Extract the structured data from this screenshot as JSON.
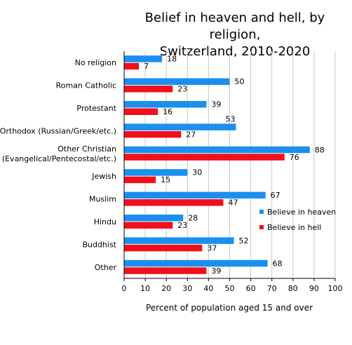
{
  "chart_data": {
    "type": "bar",
    "orientation": "horizontal",
    "title": [
      "Belief in heaven and hell, by religion,",
      "Switzerland, 2010-2020"
    ],
    "xlabel": "Percent of population aged 15 and over",
    "xlim": [
      0,
      100
    ],
    "xticks": [
      "0",
      "10",
      "20",
      "30",
      "40",
      "50",
      "60",
      "70",
      "80",
      "90",
      "100"
    ],
    "grid": "vertical",
    "legend_position": "right",
    "categories": [
      [
        "No religion"
      ],
      [
        "Roman Catholic"
      ],
      [
        "Protestant"
      ],
      [
        "Orthodox (Russian/Greek/etc.)"
      ],
      [
        "Other Christian",
        "(Evangelical/Pentecostal/etc.)"
      ],
      [
        "Jewish"
      ],
      [
        "Muslim"
      ],
      [
        "Hindu"
      ],
      [
        "Buddhist"
      ],
      [
        "Other"
      ]
    ],
    "series": [
      {
        "name": "Believe in heaven",
        "color": "#1a8ff0",
        "values": [
          18,
          50,
          39,
          53,
          88,
          30,
          67,
          28,
          52,
          68
        ]
      },
      {
        "name": "Believe in hell",
        "color": "#f0101a",
        "values": [
          7,
          23,
          16,
          27,
          76,
          15,
          47,
          23,
          37,
          39
        ]
      }
    ]
  }
}
